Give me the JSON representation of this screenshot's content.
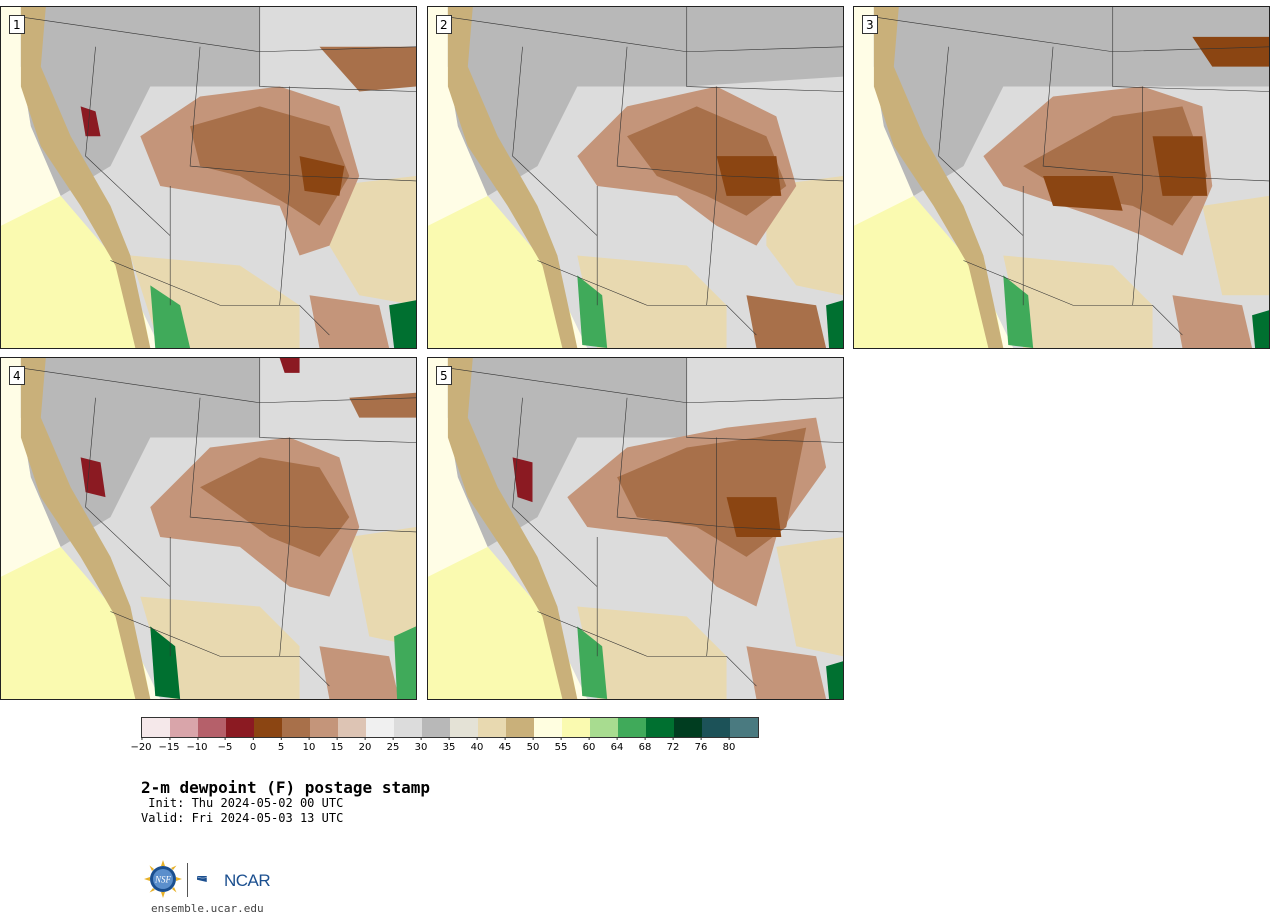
{
  "stamps": [
    {
      "label": "1"
    },
    {
      "label": "2"
    },
    {
      "label": "3"
    },
    {
      "label": "4"
    },
    {
      "label": "5"
    }
  ],
  "colorbar": {
    "colors": [
      "#f5e8ea",
      "#d9a5aa",
      "#b5606a",
      "#8b1a22",
      "#8b4512",
      "#a8704a",
      "#c4957a",
      "#ddc4b4",
      "#f0f0f0",
      "#dcdcdc",
      "#b8b8b8",
      "#e4e2d6",
      "#e8d9b0",
      "#c9b07a",
      "#fffee0",
      "#fafab0",
      "#a8dc90",
      "#40aa5a",
      "#007030",
      "#003d20",
      "#1c5258",
      "#4a7a80"
    ],
    "ticks": [
      "−20",
      "−15",
      "−10",
      "−5",
      "0",
      "5",
      "10",
      "15",
      "20",
      "25",
      "30",
      "35",
      "40",
      "45",
      "50",
      "55",
      "60",
      "64",
      "68",
      "72",
      "76",
      "80"
    ]
  },
  "title": "2-m dewpoint (F) postage stamp",
  "init": " Init: Thu 2024-05-02 00 UTC",
  "valid": "Valid: Fri 2024-05-03 13 UTC",
  "logos": {
    "nsf_text": "NSF",
    "ncar_text": "NCAR",
    "nsf_color": "#1b4f8f",
    "ncar_color": "#1b4f8f"
  },
  "site": "ensemble.ucar.edu"
}
